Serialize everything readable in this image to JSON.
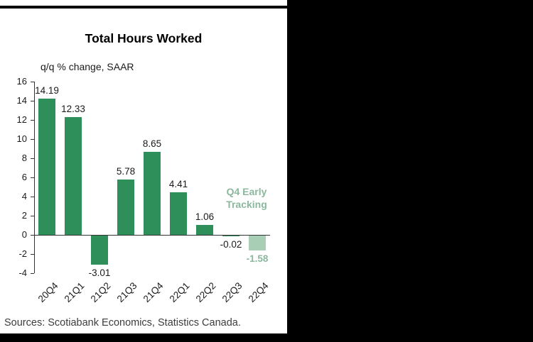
{
  "colors": {
    "bar": "#2f8f5b",
    "highlight_bar": "#a8cfb6",
    "highlight_text": "#8bb89d",
    "axis": "#333333",
    "text": "#1a1a1a"
  },
  "chart_data": {
    "type": "bar",
    "title": "Total Hours Worked",
    "subtitle": "q/q % change, SAAR",
    "categories": [
      "20Q4",
      "21Q1",
      "21Q2",
      "21Q3",
      "21Q4",
      "22Q1",
      "22Q2",
      "22Q3",
      "22Q4"
    ],
    "values": [
      14.19,
      12.33,
      -3.01,
      5.78,
      8.65,
      4.41,
      1.06,
      -0.02,
      -1.58
    ],
    "labels": [
      "14.19",
      "12.33",
      "-3.01",
      "5.78",
      "8.65",
      "4.41",
      "1.06",
      "-0.02",
      "-1.58"
    ],
    "highlight_index": 8,
    "annotation": "Q4 Early Tracking",
    "ylim": [
      -4,
      16
    ],
    "yticks": [
      16,
      14,
      12,
      10,
      8,
      6,
      4,
      2,
      0,
      -2,
      -4
    ],
    "grid": false,
    "legend_position": "none",
    "source": "Sources: Scotiabank Economics, Statistics Canada."
  }
}
